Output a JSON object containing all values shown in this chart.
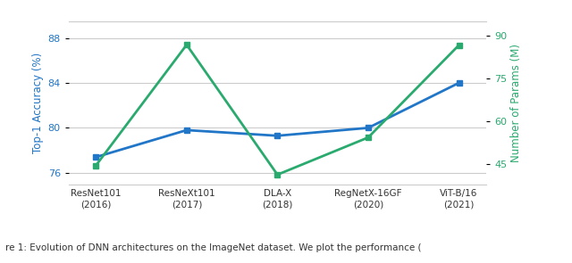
{
  "x_labels": [
    "ResNet101\n(2016)",
    "ResNeXt101\n(2017)",
    "DLA-X\n(2018)",
    "RegNetX-16GF\n(2020)",
    "ViT-B/16\n(2021)"
  ],
  "accuracy": [
    77.4,
    79.8,
    79.3,
    80.0,
    84.0
  ],
  "params": [
    44.5,
    86.7,
    41.3,
    54.3,
    86.6
  ],
  "blue_color": "#2176C7",
  "green_color": "#2AAA6E",
  "ylabel_left": "Top-1 Accuracy (%)",
  "ylabel_right": "Number of Params (M)",
  "ylim_left": [
    75.0,
    89.5
  ],
  "ylim_right": [
    38.0,
    95.0
  ],
  "yticks_left": [
    76,
    80,
    84,
    88
  ],
  "yticks_right": [
    45,
    60,
    75,
    90
  ],
  "background_color": "#ffffff",
  "grid_color": "#cccccc",
  "marker": "s",
  "marker_size": 4,
  "line_width": 2.0,
  "caption": "re 1: Evolution of DNN architectures on the ImageNet dataset. We plot the performance ("
}
